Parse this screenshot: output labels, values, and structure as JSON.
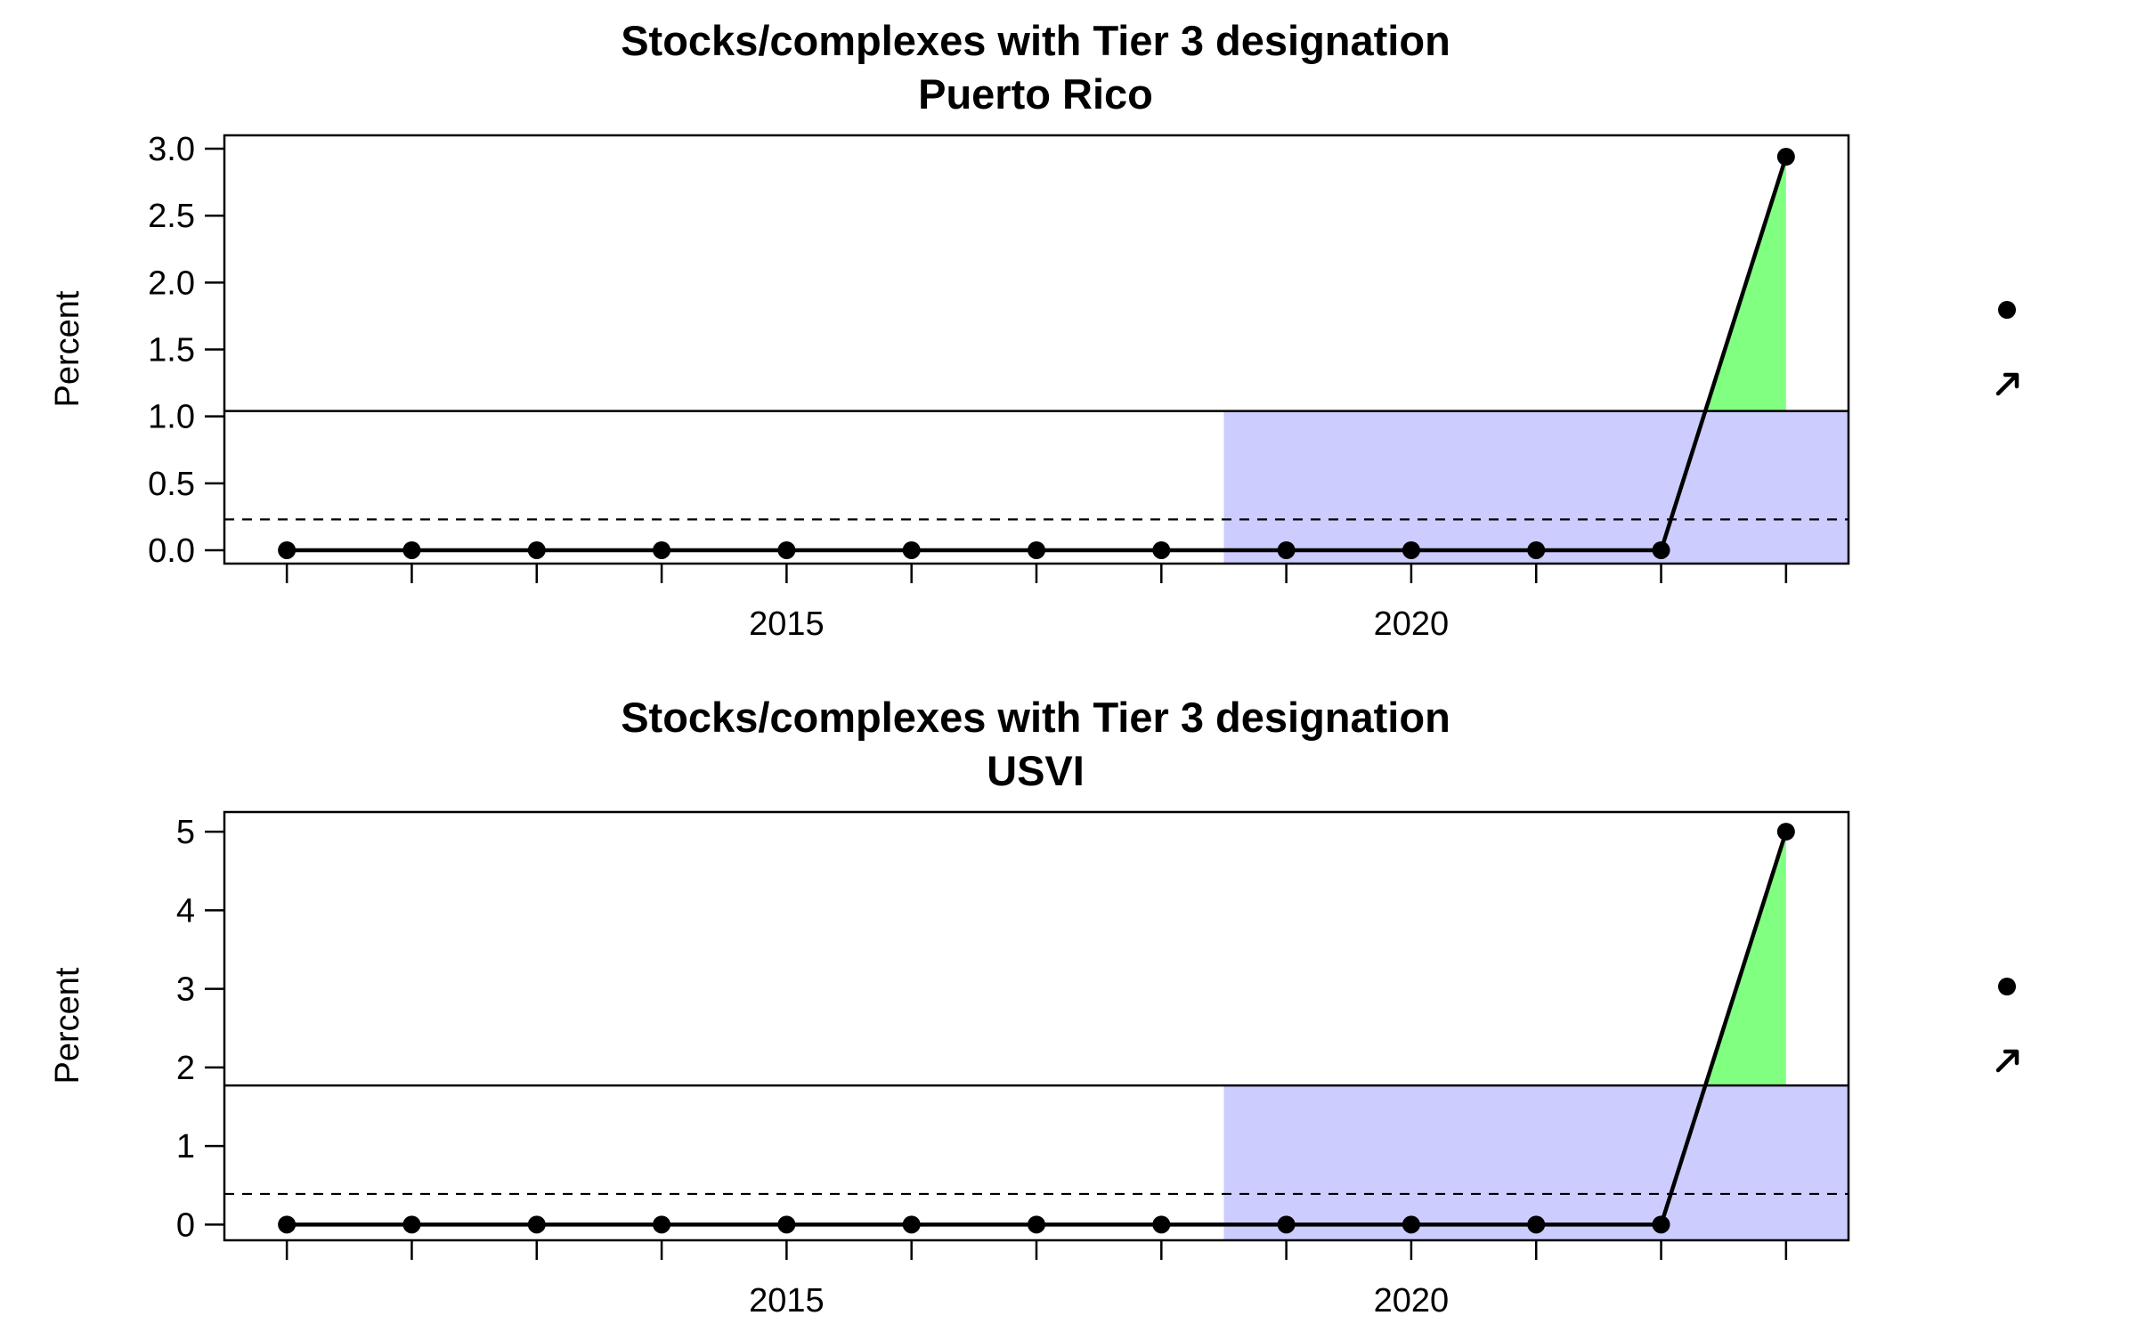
{
  "chart_data": [
    {
      "type": "line",
      "title": "Stocks/complexes with Tier 3 designation",
      "subtitle": "Puerto Rico",
      "xlabel": "",
      "ylabel": "Percent",
      "x": [
        2011,
        2012,
        2013,
        2014,
        2015,
        2016,
        2017,
        2018,
        2019,
        2020,
        2021,
        2022,
        2023
      ],
      "series": [
        {
          "values": [
            0,
            0,
            0,
            0,
            0,
            0,
            0,
            0,
            0,
            0,
            0,
            0,
            2.94
          ]
        }
      ],
      "xlim": [
        2010.5,
        2023.5
      ],
      "ylim": [
        -0.1,
        3.1
      ],
      "x_ticks": [
        2015,
        2020
      ],
      "x_tick_labels": [
        "2015",
        "2020"
      ],
      "y_ticks": [
        0,
        0.5,
        1,
        1.5,
        2,
        2.5,
        3
      ],
      "y_tick_labels": [
        "0.0",
        "0.5",
        "1.0",
        "1.5",
        "2.0",
        "2.5",
        "3.0"
      ],
      "upper_threshold": 1.04,
      "lower_threshold": 0.23,
      "shaded_period_start": 2018.5,
      "grid": false,
      "trend_indicators": {
        "mean": "above",
        "trend": "increasing"
      }
    },
    {
      "type": "line",
      "title": "Stocks/complexes with Tier 3 designation",
      "subtitle": "USVI",
      "xlabel": "",
      "ylabel": "Percent",
      "x": [
        2011,
        2012,
        2013,
        2014,
        2015,
        2016,
        2017,
        2018,
        2019,
        2020,
        2021,
        2022,
        2023
      ],
      "series": [
        {
          "values": [
            0,
            0,
            0,
            0,
            0,
            0,
            0,
            0,
            0,
            0,
            0,
            0,
            5
          ]
        }
      ],
      "xlim": [
        2010.5,
        2023.5
      ],
      "ylim": [
        -0.2,
        5.25
      ],
      "x_ticks": [
        2015,
        2020
      ],
      "x_tick_labels": [
        "2015",
        "2020"
      ],
      "y_ticks": [
        0,
        1,
        2,
        3,
        4,
        5
      ],
      "y_tick_labels": [
        "0",
        "1",
        "2",
        "3",
        "4",
        "5"
      ],
      "upper_threshold": 1.77,
      "lower_threshold": 0.39,
      "shaded_period_start": 2018.5,
      "grid": false,
      "trend_indicators": {
        "mean": "above",
        "trend": "increasing"
      }
    }
  ],
  "colors": {
    "line": "#000000",
    "shaded_period": "#ccccff",
    "above_threshold_fill": "#80ff80",
    "frame": "#000000"
  }
}
